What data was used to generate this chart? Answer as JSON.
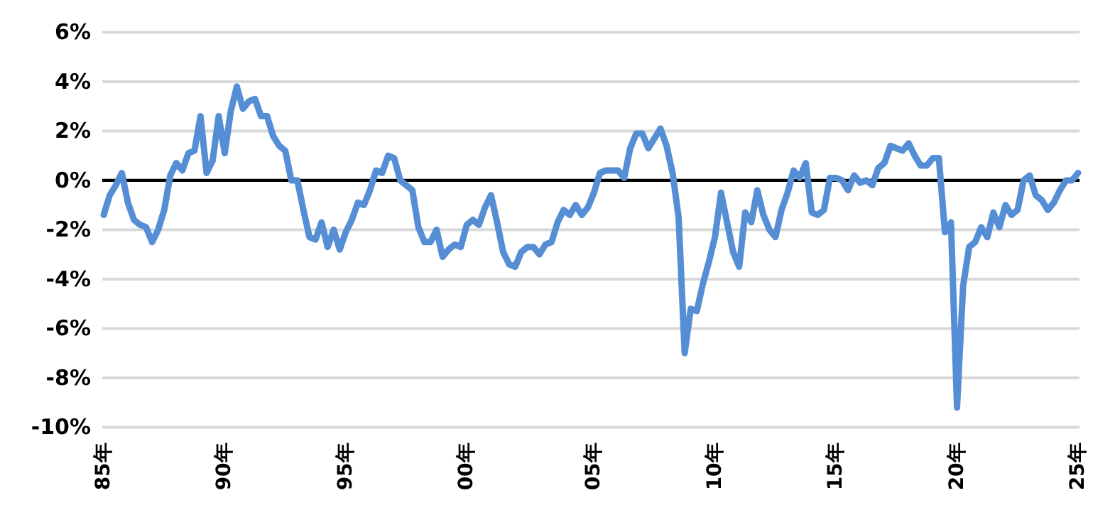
{
  "chart_data": {
    "type": "line",
    "categories": [
      "85年",
      null,
      null,
      null,
      null,
      null,
      null,
      null,
      null,
      null,
      null,
      null,
      null,
      null,
      null,
      null,
      null,
      null,
      null,
      null,
      "90年",
      null,
      null,
      null,
      null,
      null,
      null,
      null,
      null,
      null,
      null,
      null,
      null,
      null,
      null,
      null,
      null,
      null,
      null,
      null,
      "95年",
      null,
      null,
      null,
      null,
      null,
      null,
      null,
      null,
      null,
      null,
      null,
      null,
      null,
      null,
      null,
      null,
      null,
      null,
      null,
      "00年",
      null,
      null,
      null,
      null,
      null,
      null,
      null,
      null,
      null,
      null,
      null,
      null,
      null,
      null,
      null,
      null,
      null,
      null,
      null,
      null,
      "05年",
      null,
      null,
      null,
      null,
      null,
      null,
      null,
      null,
      null,
      null,
      null,
      null,
      null,
      null,
      null,
      null,
      null,
      null,
      null,
      "10年",
      null,
      null,
      null,
      null,
      null,
      null,
      null,
      null,
      null,
      null,
      null,
      null,
      null,
      null,
      null,
      null,
      null,
      null,
      null,
      "15年",
      null,
      null,
      null,
      null,
      null,
      null,
      null,
      null,
      null,
      null,
      null,
      null,
      null,
      null,
      null,
      null,
      null,
      null,
      null,
      "20年",
      null,
      null,
      null,
      null,
      null,
      null,
      null,
      null,
      null,
      null,
      null,
      null,
      null,
      null,
      null,
      null,
      null,
      null,
      null,
      "25年"
    ],
    "series": [
      {
        "color": "#558ed5",
        "values": [
          -1.4,
          -0.6,
          -0.2,
          0.3,
          -0.9,
          -1.6,
          -1.8,
          -1.9,
          -2.5,
          -2.0,
          -1.2,
          0.2,
          0.7,
          0.4,
          1.1,
          1.2,
          2.6,
          0.3,
          0.8,
          2.6,
          1.1,
          2.8,
          3.8,
          2.9,
          3.2,
          3.3,
          2.6,
          2.6,
          1.8,
          1.4,
          1.2,
          0.0,
          0.0,
          -1.2,
          -2.3,
          -2.4,
          -1.7,
          -2.7,
          -2.0,
          -2.8,
          -2.1,
          -1.6,
          -0.9,
          -1.0,
          -0.4,
          0.4,
          0.3,
          1.0,
          0.9,
          0.0,
          -0.2,
          -0.4,
          -1.9,
          -2.5,
          -2.5,
          -2.0,
          -3.1,
          -2.8,
          -2.6,
          -2.7,
          -1.8,
          -1.6,
          -1.8,
          -1.1,
          -0.6,
          -1.7,
          -2.9,
          -3.4,
          -3.5,
          -2.9,
          -2.7,
          -2.7,
          -3.0,
          -2.6,
          -2.5,
          -1.7,
          -1.2,
          -1.4,
          -1.0,
          -1.4,
          -1.1,
          -0.5,
          0.3,
          0.4,
          0.4,
          0.4,
          0.1,
          1.3,
          1.9,
          1.9,
          1.3,
          1.7,
          2.1,
          1.4,
          0.3,
          -1.5,
          -7.0,
          -5.2,
          -5.3,
          -4.2,
          -3.3,
          -2.3,
          -0.5,
          -1.7,
          -2.9,
          -3.5,
          -1.3,
          -1.7,
          -0.4,
          -1.4,
          -2.0,
          -2.3,
          -1.2,
          -0.5,
          0.4,
          0.1,
          0.7,
          -1.3,
          -1.4,
          -1.2,
          0.1,
          0.1,
          0.0,
          -0.4,
          0.2,
          -0.1,
          0.0,
          -0.2,
          0.5,
          0.7,
          1.4,
          1.3,
          1.2,
          1.5,
          1.0,
          0.6,
          0.6,
          0.9,
          0.9,
          -2.1,
          -1.7,
          -9.2,
          -4.3,
          -2.7,
          -2.5,
          -1.9,
          -2.3,
          -1.3,
          -1.9,
          -1.0,
          -1.4,
          -1.2,
          0.0,
          0.2,
          -0.6,
          -0.8,
          -1.2,
          -0.9,
          -0.4,
          0.0,
          0.0,
          0.3
        ]
      }
    ],
    "ylim": [
      -10,
      6
    ],
    "yticks": [
      {
        "value": -10,
        "label": "-10%"
      },
      {
        "value": -8,
        "label": "-8%"
      },
      {
        "value": -6,
        "label": "-6%"
      },
      {
        "value": -4,
        "label": "-4%"
      },
      {
        "value": -2,
        "label": "-2%"
      },
      {
        "value": 0,
        "label": "0%"
      },
      {
        "value": 2,
        "label": "2%"
      },
      {
        "value": 4,
        "label": "4%"
      },
      {
        "value": 6,
        "label": "6%"
      }
    ],
    "grid": "y",
    "ref_lines": [
      {
        "axis": "y",
        "value": 0,
        "color": "#000000"
      }
    ],
    "marker": "none",
    "line_style": "solid"
  }
}
